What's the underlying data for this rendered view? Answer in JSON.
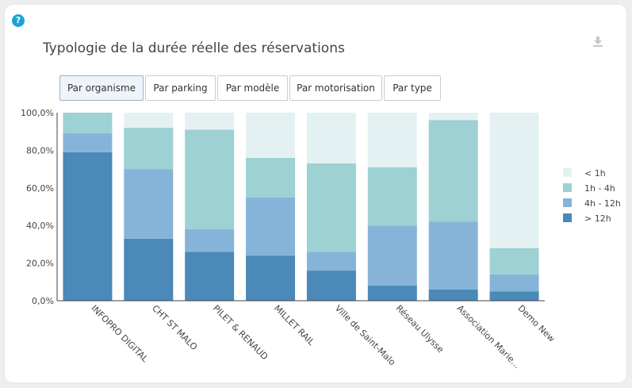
{
  "card": {
    "help_icon_glyph": "?",
    "title": "Typologie de la durée réelle des réservations",
    "download_icon": "download-icon"
  },
  "tabs": [
    {
      "label": "Par organisme",
      "active": true
    },
    {
      "label": "Par parking",
      "active": false
    },
    {
      "label": "Par modèle",
      "active": false
    },
    {
      "label": "Par motorisation",
      "active": false
    },
    {
      "label": "Par type",
      "active": false
    }
  ],
  "colors": {
    "lt1h": "#e4f1f3",
    "h1_4": "#9dd1d3",
    "h4_12": "#86b4d8",
    "gt12h": "#4a89b8"
  },
  "chart_data": {
    "type": "bar",
    "stacked": true,
    "categories": [
      "INFOPRO DIGITAL",
      "CHT ST MALO",
      "PILET & RENAUD",
      "MILLET RAIL",
      "Ville de Saint-Malo",
      "Réseau Ulysse",
      "Association Marie...",
      "Demo New"
    ],
    "series": [
      {
        "name": "> 12h",
        "color": "#4a89b8",
        "values": [
          79,
          33,
          26,
          24,
          16,
          8,
          6,
          5
        ]
      },
      {
        "name": "4h - 12h",
        "color": "#86b4d8",
        "values": [
          10,
          37,
          12,
          31,
          10,
          32,
          36,
          9
        ]
      },
      {
        "name": "1h - 4h",
        "color": "#9dd1d3",
        "values": [
          11,
          22,
          53,
          21,
          47,
          31,
          54,
          14
        ]
      },
      {
        "name": "< 1h",
        "color": "#e4f1f3",
        "values": [
          0,
          8,
          9,
          24,
          27,
          29,
          4,
          72
        ]
      }
    ],
    "legend_order": [
      "< 1h",
      "1h - 4h",
      "4h - 12h",
      "> 12h"
    ],
    "y_ticks": [
      "0,0%",
      "20,0%",
      "40,0%",
      "60,0%",
      "80,0%",
      "100,0%"
    ],
    "ylim": [
      0,
      100
    ],
    "legend_position": "right"
  }
}
